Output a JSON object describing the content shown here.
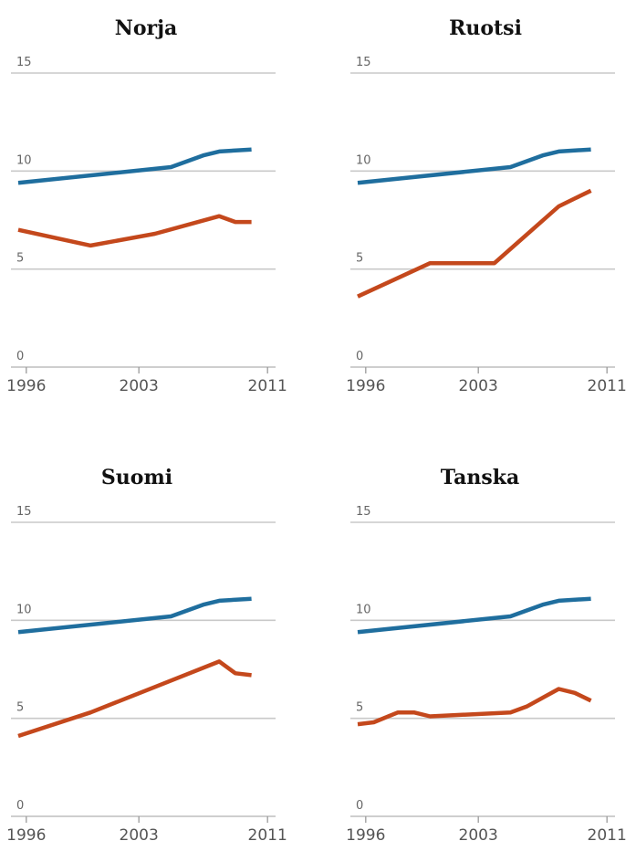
{
  "chart_data": [
    {
      "type": "line",
      "title": "Norja",
      "yticks": [
        0,
        5,
        10,
        15
      ],
      "xticks": [
        1996,
        2003,
        2011
      ],
      "xlim": [
        1995.5,
        2011.5
      ],
      "ylim": [
        0,
        15
      ],
      "series": [
        {
          "color": "#1f6e9e",
          "x": [
            1995.5,
            2005,
            2007,
            2008,
            2010
          ],
          "y": [
            9.4,
            10.2,
            10.8,
            11.0,
            11.1
          ]
        },
        {
          "color": "#c4481c",
          "x": [
            1995.5,
            2000,
            2004,
            2008,
            2009,
            2010
          ],
          "y": [
            7.0,
            6.2,
            6.8,
            7.7,
            7.4,
            7.4
          ]
        }
      ]
    },
    {
      "type": "line",
      "title": "Ruotsi",
      "yticks": [
        0,
        5,
        10,
        15
      ],
      "xticks": [
        1996,
        2003,
        2011
      ],
      "xlim": [
        1995.5,
        2011.5
      ],
      "ylim": [
        0,
        15
      ],
      "series": [
        {
          "color": "#1f6e9e",
          "x": [
            1995.5,
            2005,
            2007,
            2008,
            2010
          ],
          "y": [
            9.4,
            10.2,
            10.8,
            11.0,
            11.1
          ]
        },
        {
          "color": "#c4481c",
          "x": [
            1995.5,
            2000,
            2004,
            2008,
            2009,
            2010
          ],
          "y": [
            3.6,
            5.3,
            5.3,
            8.2,
            8.6,
            9.0
          ]
        }
      ]
    },
    {
      "type": "line",
      "title": "Suomi",
      "yticks": [
        0,
        5,
        10,
        15
      ],
      "xticks": [
        1996,
        2003,
        2011
      ],
      "xlim": [
        1995.5,
        2011.5
      ],
      "ylim": [
        0,
        15
      ],
      "series": [
        {
          "color": "#1f6e9e",
          "x": [
            1995.5,
            2005,
            2007,
            2008,
            2010
          ],
          "y": [
            9.4,
            10.2,
            10.8,
            11.0,
            11.1
          ]
        },
        {
          "color": "#c4481c",
          "x": [
            1995.5,
            2000,
            2004,
            2008,
            2009,
            2010
          ],
          "y": [
            4.1,
            5.3,
            6.6,
            7.9,
            7.3,
            7.2
          ]
        }
      ]
    },
    {
      "type": "line",
      "title": "Tanska",
      "yticks": [
        0,
        5,
        10,
        15
      ],
      "xticks": [
        1996,
        2003,
        2011
      ],
      "xlim": [
        1995.5,
        2011.5
      ],
      "ylim": [
        0,
        15
      ],
      "series": [
        {
          "color": "#1f6e9e",
          "x": [
            1995.5,
            2005,
            2007,
            2008,
            2010
          ],
          "y": [
            9.4,
            10.2,
            10.8,
            11.0,
            11.1
          ]
        },
        {
          "color": "#c4481c",
          "x": [
            1995.5,
            1996.5,
            1998,
            1999,
            2000,
            2005,
            2006,
            2008,
            2009,
            2010
          ],
          "y": [
            4.7,
            4.8,
            5.3,
            5.3,
            5.1,
            5.3,
            5.6,
            6.5,
            6.3,
            5.9
          ]
        }
      ]
    }
  ]
}
